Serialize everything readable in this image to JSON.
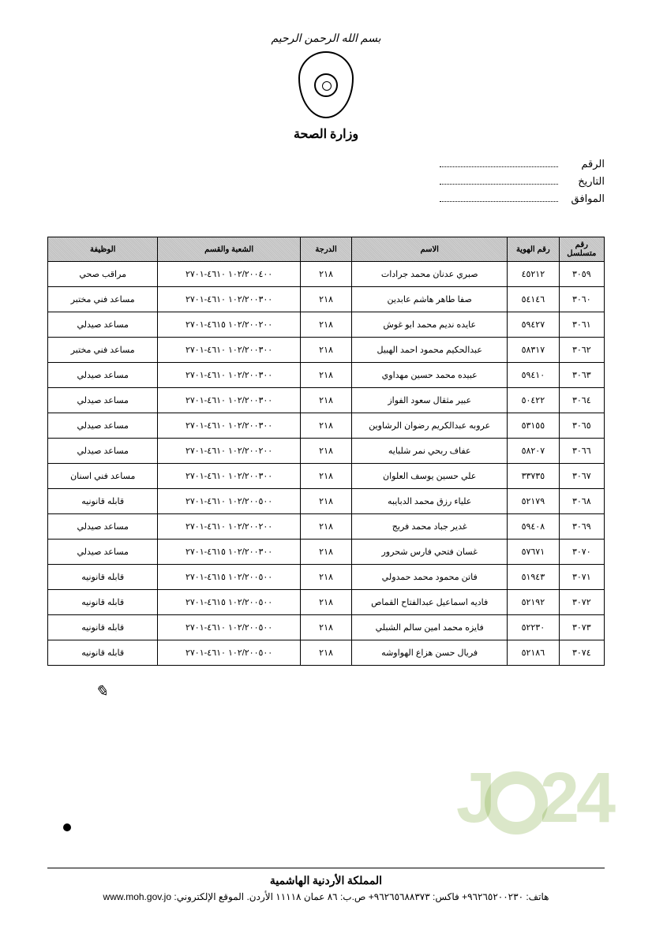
{
  "header": {
    "bismillah": "بسم الله الرحمن الرحيم",
    "ministry": "وزارة الصحة"
  },
  "form": {
    "number_label": "الرقم",
    "date_label": "التاريخ",
    "corresponding_label": "الموافق"
  },
  "table": {
    "columns": [
      "رقم متسلسل",
      "رقم الهوية",
      "الاسم",
      "الدرجة",
      "الشعبة والقسم",
      "الوظيفة"
    ],
    "rows": [
      {
        "serial": "٣٠٥٩",
        "id": "٤٥٢١٢",
        "name": "صبري عدنان محمد جرادات",
        "grade": "٢١٨",
        "code": "١٠٢/٢٠٠٤٠٠ ٤٦١٠-٢٧٠١",
        "job": "مراقب صحي"
      },
      {
        "serial": "٣٠٦٠",
        "id": "٥٤١٤٦",
        "name": "صفا طاهر هاشم عابدين",
        "grade": "٢١٨",
        "code": "١٠٢/٢٠٠٣٠٠ ٤٦١٠-٢٧٠١",
        "job": "مساعد فني مختبر"
      },
      {
        "serial": "٣٠٦١",
        "id": "٥٩٤٢٧",
        "name": "عايده نديم محمد ابو غوش",
        "grade": "٢١٨",
        "code": "١٠٢/٢٠٠٢٠٠ ٤٦١٥-٢٧٠١",
        "job": "مساعد صيدلي"
      },
      {
        "serial": "٣٠٦٢",
        "id": "٥٨٣١٧",
        "name": "عبدالحكيم محمود احمد الهبيل",
        "grade": "٢١٨",
        "code": "١٠٢/٢٠٠٣٠٠ ٤٦١٠-٢٧٠١",
        "job": "مساعد فني مختبر"
      },
      {
        "serial": "٣٠٦٣",
        "id": "٥٩٤١٠",
        "name": "عبيده محمد حسين مهداوي",
        "grade": "٢١٨",
        "code": "١٠٢/٢٠٠٣٠٠ ٤٦١٠-٢٧٠١",
        "job": "مساعد صيدلي"
      },
      {
        "serial": "٣٠٦٤",
        "id": "٥٠٤٢٢",
        "name": "عبير مثقال سعود الفواز",
        "grade": "٢١٨",
        "code": "١٠٢/٢٠٠٣٠٠ ٤٦١٠-٢٧٠١",
        "job": "مساعد صيدلي"
      },
      {
        "serial": "٣٠٦٥",
        "id": "٥٣١٥٥",
        "name": "عروبه عبدالكريم رضوان الرشاوين",
        "grade": "٢١٨",
        "code": "١٠٢/٢٠٠٣٠٠ ٤٦١٠-٢٧٠١",
        "job": "مساعد صيدلي"
      },
      {
        "serial": "٣٠٦٦",
        "id": "٥٨٢٠٧",
        "name": "عفاف ربحي نمر شلبايه",
        "grade": "٢١٨",
        "code": "١٠٢/٢٠٠٢٠٠ ٤٦١٠-٢٧٠١",
        "job": "مساعد صيدلي"
      },
      {
        "serial": "٣٠٦٧",
        "id": "٣٣٧٣٥",
        "name": "علي حسين يوسف العلوان",
        "grade": "٢١٨",
        "code": "١٠٢/٢٠٠٣٠٠ ٤٦١٠-٢٧٠١",
        "job": "مساعد فني اسنان"
      },
      {
        "serial": "٣٠٦٨",
        "id": "٥٢١٧٩",
        "name": "علياء رزق محمد الدبايبه",
        "grade": "٢١٨",
        "code": "١٠٢/٢٠٠٥٠٠ ٤٦١٠-٢٧٠١",
        "job": "قابله قانونيه"
      },
      {
        "serial": "٣٠٦٩",
        "id": "٥٩٤٠٨",
        "name": "غدير جباد محمد فريج",
        "grade": "٢١٨",
        "code": "١٠٢/٢٠٠٢٠٠ ٤٦١٠-٢٧٠١",
        "job": "مساعد صيدلي"
      },
      {
        "serial": "٣٠٧٠",
        "id": "٥٧٦٧١",
        "name": "غسان فتحي فارس شحرور",
        "grade": "٢١٨",
        "code": "١٠٢/٢٠٠٣٠٠ ٤٦١٥-٢٧٠١",
        "job": "مساعد صيدلي"
      },
      {
        "serial": "٣٠٧١",
        "id": "٥١٩٤٣",
        "name": "فاتن محمود محمد حمدولي",
        "grade": "٢١٨",
        "code": "١٠٢/٢٠٠٥٠٠ ٤٦١٥-٢٧٠١",
        "job": "قابله قانونيه"
      },
      {
        "serial": "٣٠٧٢",
        "id": "٥٢١٩٢",
        "name": "فاديه اسماعيل عبدالفتاح القماص",
        "grade": "٢١٨",
        "code": "١٠٢/٢٠٠٥٠٠ ٤٦١٥-٢٧٠١",
        "job": "قابله قانونيه"
      },
      {
        "serial": "٣٠٧٣",
        "id": "٥٢٢٣٠",
        "name": "فايزه محمد امين سالم الشبلي",
        "grade": "٢١٨",
        "code": "١٠٢/٢٠٠٥٠٠ ٤٦١٠-٢٧٠١",
        "job": "قابله قانونيه"
      },
      {
        "serial": "٣٠٧٤",
        "id": "٥٢١٨٦",
        "name": "فريال حسن هزاع الهواوشه",
        "grade": "٢١٨",
        "code": "١٠٢/٢٠٠٥٠٠ ٤٦١٠-٢٧٠١",
        "job": "قابله قانونيه"
      }
    ]
  },
  "footer": {
    "country": "المملكة الأردنية الهاشمية",
    "contact": "هاتف: ٩٦٢٦٥٢٠٠٢٣٠+ فاكس: ٩٦٢٦٥٦٨٨٣٧٣+ ص.ب: ٨٦ عمان ١١١١٨ الأردن. الموقع الإلكتروني: www.moh.gov.jo"
  },
  "watermark": "J  24"
}
